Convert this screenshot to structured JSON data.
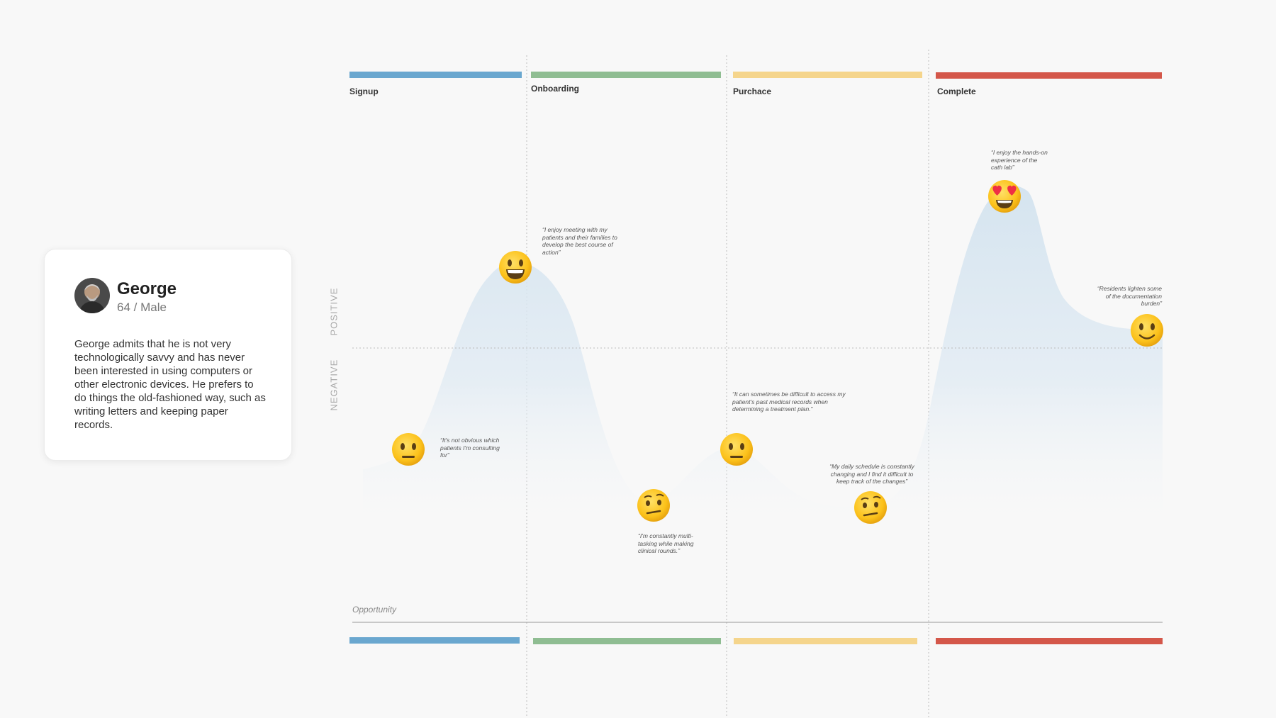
{
  "persona": {
    "name": "George",
    "meta": "64 / Male",
    "bio": "George admits that he is not very technologically savvy and has never been interested in using computers or other electronic devices. He prefers to do things the old-fashioned way, such as writing letters and keeping paper records."
  },
  "axis": {
    "positive": "POSITIVE",
    "negative": "NEGATIVE",
    "opportunity": "Opportunity"
  },
  "stages": [
    {
      "label": "Signup",
      "color": "#6aa7cf"
    },
    {
      "label": "Onboarding",
      "color": "#8fbd92"
    },
    {
      "label": "Purchace",
      "color": "#f5d58c"
    },
    {
      "label": "Complete",
      "color": "#d4574a"
    }
  ],
  "quotes": [
    {
      "text": "“It's not obvious which patients I'm consulting for”"
    },
    {
      "text": "“I enjoy meeting with my patients and their families to develop the best course of action”"
    },
    {
      "text": "“I'm constantly multi-tasking while making clinical rounds.”"
    },
    {
      "text": "“It can sometimes be difficult to access my patient's past medical records when determining a treatment plan.”"
    },
    {
      "text": "“My daily schedule is constantly changing and I find it difficult to keep track of the changes”"
    },
    {
      "text": "“I enjoy the hands-on experience of the cath lab”"
    },
    {
      "text": "“Residents lighten some of the documentation burden”"
    }
  ],
  "emotions": [
    "neutral-face",
    "grinning-face",
    "raised-eyebrow-face",
    "neutral-face",
    "raised-eyebrow-face",
    "heart-eyes-face",
    "slightly-smiling-face"
  ]
}
